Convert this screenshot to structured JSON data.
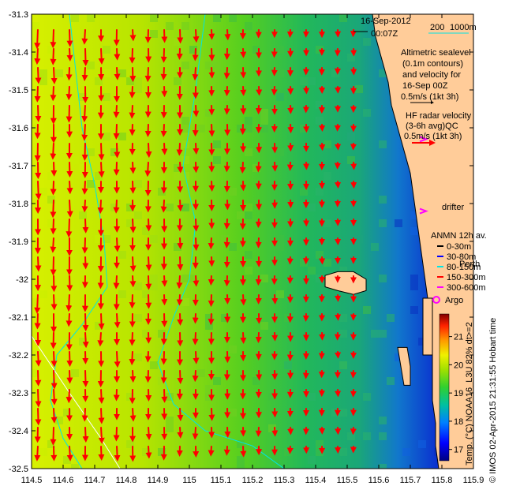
{
  "header": {
    "date": "16-Sep-2012",
    "time": "00:07Z"
  },
  "scale_bar": {
    "label_a": "200",
    "label_b": "1000m",
    "color": "#00e5e5"
  },
  "altimetry_legend": {
    "line1": "Altimetric sealevel",
    "line2": "(0.1m contours)",
    "line3": "and velocity for",
    "line4": "16-Sep 00Z",
    "line5": "0.5m/s (1kt 3h)"
  },
  "hf_legend": {
    "line1": "HF radar velocity",
    "line2": "(3-6h avg)QC",
    "line3": "0.5m/s (1kt 3h)",
    "color": "#ff0000"
  },
  "drifter_legend": {
    "label": "drifter",
    "color": "#ff00ff"
  },
  "anmn_legend": {
    "title": "ANMN 12h av.",
    "items": [
      {
        "label": "0-30m",
        "color": "#000000"
      },
      {
        "label": "30-80m",
        "color": "#0000ff"
      },
      {
        "label": "80-150m",
        "color": "#00e5e5"
      },
      {
        "label": "150-300m",
        "color": "#ff0000"
      },
      {
        "label": "300-600m",
        "color": "#ff00ff"
      }
    ]
  },
  "place_label": "Perth",
  "argo_legend": {
    "label": "Argo",
    "color": "#ff00ff"
  },
  "colorbar": {
    "label": "Temp. (°C) NOAA16_L3U 82% dt>=2",
    "ticks": [
      17,
      18,
      19,
      20,
      21
    ],
    "range": [
      16.6,
      21.8
    ]
  },
  "credit": "© IMOS 02-Apr-2015 21:31:55 Hobart time",
  "map_data": {
    "lon_range": [
      114.5,
      115.9
    ],
    "lat_range": [
      -32.5,
      -31.3
    ],
    "x_ticks": [
      114.5,
      114.6,
      114.7,
      114.8,
      114.9,
      115.0,
      115.1,
      115.2,
      115.3,
      115.4,
      115.5,
      115.6,
      115.7,
      115.8,
      115.9
    ],
    "x_tick_labels": [
      "114.5",
      "114.6",
      "114.7",
      "114.8",
      "114.9",
      "115",
      "115.1",
      "115.2",
      "115.3",
      "115.4",
      "115.5",
      "115.6",
      "115.7",
      "115.8",
      "115.9"
    ],
    "y_ticks": [
      -31.3,
      -31.4,
      -31.5,
      -31.6,
      -31.7,
      -31.8,
      -31.9,
      -32.0,
      -32.1,
      -32.2,
      -32.3,
      -32.4,
      -32.5
    ],
    "y_tick_labels": [
      "-31.3",
      "-31.4",
      "-31.5",
      "-31.6",
      "-31.7",
      "-31.8",
      "-31.9",
      "-32",
      "-32.1",
      "-32.2",
      "-32.3",
      "-32.4",
      "-32.5"
    ],
    "land_color": "#ffcc99",
    "coastline": [
      [
        115.58,
        -31.3
      ],
      [
        115.59,
        -31.36
      ],
      [
        115.61,
        -31.42
      ],
      [
        115.63,
        -31.48
      ],
      [
        115.64,
        -31.54
      ],
      [
        115.66,
        -31.6
      ],
      [
        115.68,
        -31.66
      ],
      [
        115.7,
        -31.72
      ],
      [
        115.71,
        -31.78
      ],
      [
        115.72,
        -31.84
      ],
      [
        115.73,
        -31.9
      ],
      [
        115.74,
        -31.96
      ],
      [
        115.75,
        -32.02
      ],
      [
        115.76,
        -32.08
      ],
      [
        115.76,
        -32.14
      ],
      [
        115.77,
        -32.2
      ],
      [
        115.77,
        -32.26
      ],
      [
        115.77,
        -32.32
      ],
      [
        115.78,
        -32.38
      ],
      [
        115.78,
        -32.44
      ],
      [
        115.79,
        -32.5
      ]
    ],
    "islands": [
      {
        "points": [
          [
            115.43,
            -31.99
          ],
          [
            115.47,
            -31.98
          ],
          [
            115.52,
            -31.98
          ],
          [
            115.56,
            -32.0
          ],
          [
            115.56,
            -32.03
          ],
          [
            115.52,
            -32.04
          ],
          [
            115.47,
            -32.03
          ],
          [
            115.43,
            -32.02
          ]
        ]
      },
      {
        "points": [
          [
            115.66,
            -32.18
          ],
          [
            115.69,
            -32.18
          ],
          [
            115.7,
            -32.23
          ],
          [
            115.7,
            -32.28
          ],
          [
            115.68,
            -32.28
          ],
          [
            115.67,
            -32.23
          ]
        ]
      },
      {
        "points": [
          [
            115.74,
            -32.05
          ],
          [
            115.77,
            -32.05
          ],
          [
            115.77,
            -32.2
          ],
          [
            115.74,
            -32.2
          ]
        ]
      }
    ],
    "isobaths": [
      {
        "depth": 200,
        "points": [
          [
            114.62,
            -31.3
          ],
          [
            114.64,
            -31.45
          ],
          [
            114.66,
            -31.6
          ],
          [
            114.7,
            -31.75
          ],
          [
            114.73,
            -31.9
          ],
          [
            114.74,
            -32.02
          ],
          [
            114.66,
            -32.12
          ],
          [
            114.58,
            -32.2
          ],
          [
            114.56,
            -32.32
          ],
          [
            114.6,
            -32.42
          ],
          [
            114.66,
            -32.5
          ]
        ]
      },
      {
        "depth": 1000,
        "points": [
          [
            114.5,
            -32.15
          ],
          [
            114.62,
            -32.3
          ],
          [
            114.72,
            -32.42
          ],
          [
            114.78,
            -32.5
          ]
        ]
      },
      {
        "depth": 50,
        "points": [
          [
            115.05,
            -31.3
          ],
          [
            115.02,
            -31.5
          ],
          [
            114.98,
            -31.7
          ],
          [
            115.02,
            -31.85
          ],
          [
            115.0,
            -32.0
          ],
          [
            114.95,
            -32.1
          ],
          [
            114.9,
            -32.22
          ],
          [
            114.95,
            -32.33
          ],
          [
            115.05,
            -32.4
          ],
          [
            115.2,
            -32.44
          ],
          [
            115.3,
            -32.5
          ]
        ]
      }
    ],
    "sst_gradient": [
      {
        "lon": 114.5,
        "temp": 20.3
      },
      {
        "lon": 114.8,
        "temp": 20.0
      },
      {
        "lon": 115.05,
        "temp": 19.5
      },
      {
        "lon": 115.2,
        "temp": 19.1
      },
      {
        "lon": 115.4,
        "temp": 18.8
      },
      {
        "lon": 115.55,
        "temp": 18.1
      },
      {
        "lon": 115.7,
        "temp": 17.2
      }
    ],
    "drifter_points": [
      [
        115.74,
        -31.63
      ],
      [
        115.74,
        -31.82
      ]
    ],
    "argo_points": [
      [
        115.7,
        -32.08
      ]
    ]
  }
}
